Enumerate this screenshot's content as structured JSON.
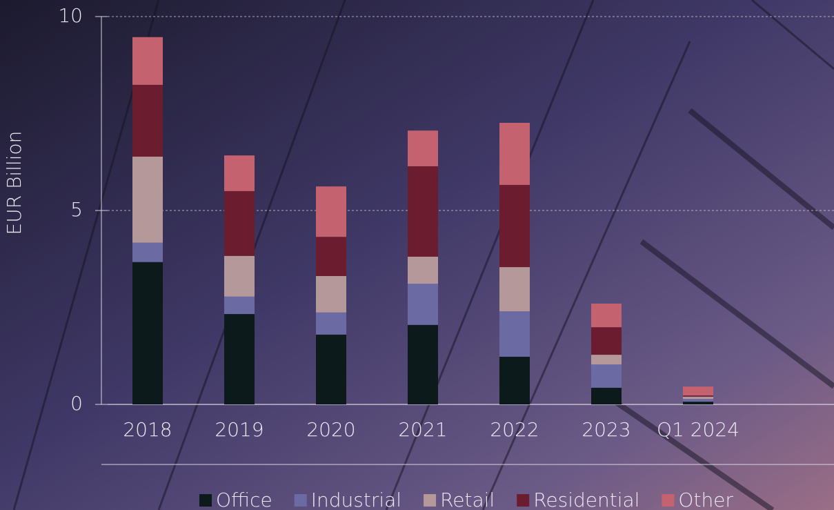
{
  "chart_data": {
    "type": "bar",
    "stacked": true,
    "y_label": "EUR Billion",
    "categories": [
      "2018",
      "2019",
      "2020",
      "2021",
      "2022",
      "2023",
      "Q1 2024"
    ],
    "series": [
      {
        "name": "Office",
        "color": "#0d1a1c",
        "values": [
          3.67,
          2.33,
          1.8,
          2.05,
          1.23,
          0.43,
          0.07
        ]
      },
      {
        "name": "Industrial",
        "color": "#6b6aa3",
        "values": [
          0.5,
          0.45,
          0.57,
          1.06,
          1.17,
          0.6,
          0.07
        ]
      },
      {
        "name": "Retail",
        "color": "#b5999a",
        "values": [
          2.22,
          1.05,
          0.94,
          0.7,
          1.14,
          0.25,
          0.06
        ]
      },
      {
        "name": "Residential",
        "color": "#6b1c2e",
        "values": [
          1.85,
          1.67,
          1.01,
          2.33,
          2.12,
          0.71,
          0.03
        ]
      },
      {
        "name": "Other",
        "color": "#c4636f",
        "values": [
          1.23,
          0.92,
          1.3,
          0.92,
          1.6,
          0.61,
          0.23
        ]
      }
    ],
    "ylim": [
      0,
      10
    ],
    "yticks": [
      0,
      5,
      10
    ],
    "grid": true
  }
}
